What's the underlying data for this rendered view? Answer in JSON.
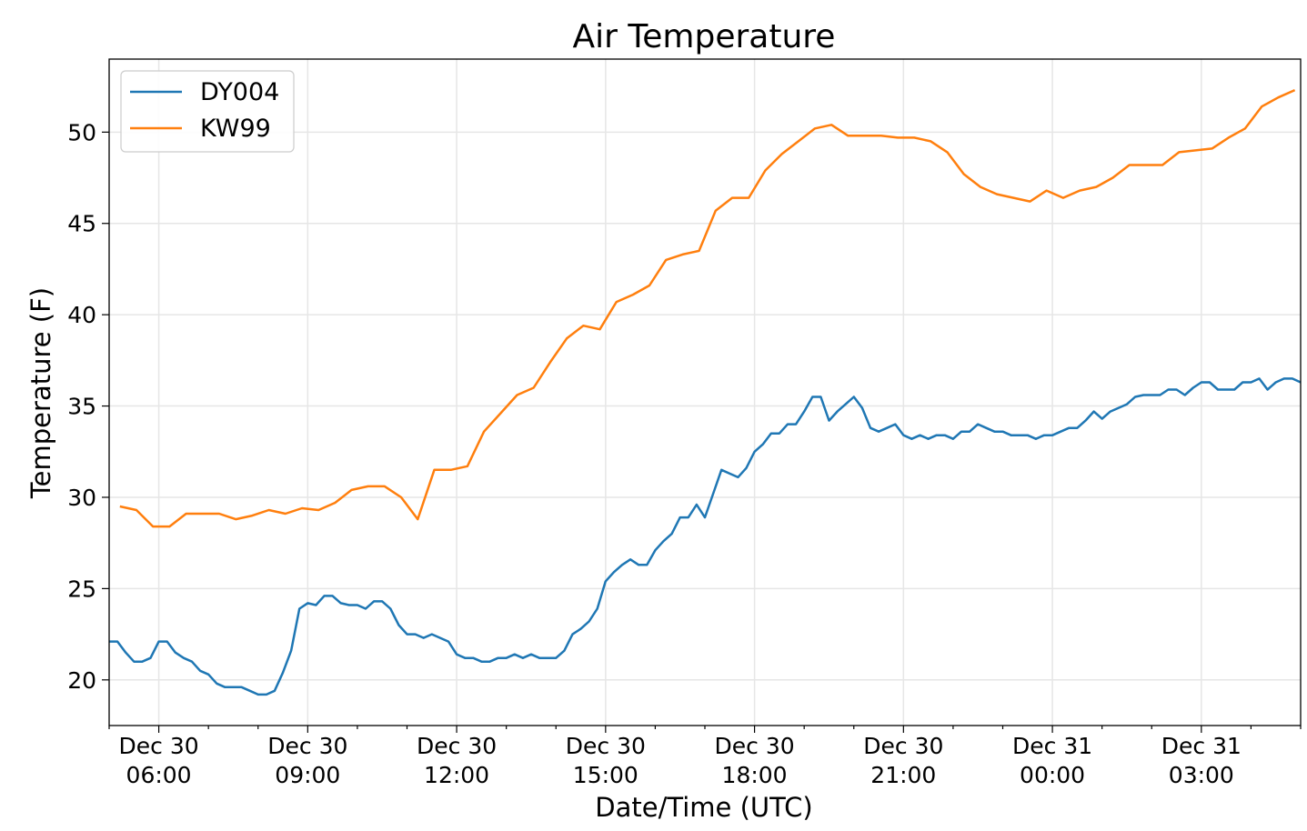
{
  "chart_data": {
    "type": "line",
    "title": "Air Temperature",
    "xlabel": "Date/Time (UTC)",
    "ylabel": "Temperature (F)",
    "x_units": "hours since Dec 30 00:00 UTC",
    "xlim": [
      5,
      29
    ],
    "ylim": [
      17.5,
      54
    ],
    "grid": true,
    "legend_position": "top-left",
    "x_ticks": [
      {
        "value": 6,
        "line1": "Dec 30",
        "line2": "06:00"
      },
      {
        "value": 9,
        "line1": "Dec 30",
        "line2": "09:00"
      },
      {
        "value": 12,
        "line1": "Dec 30",
        "line2": "12:00"
      },
      {
        "value": 15,
        "line1": "Dec 30",
        "line2": "15:00"
      },
      {
        "value": 18,
        "line1": "Dec 30",
        "line2": "18:00"
      },
      {
        "value": 21,
        "line1": "Dec 30",
        "line2": "21:00"
      },
      {
        "value": 24,
        "line1": "Dec 31",
        "line2": "00:00"
      },
      {
        "value": 27,
        "line1": "Dec 31",
        "line2": "03:00"
      }
    ],
    "y_ticks": [
      "20",
      "25",
      "30",
      "35",
      "40",
      "45",
      "50"
    ],
    "series": [
      {
        "name": "DY004",
        "color": "#1f77b4",
        "x_start": 5.0,
        "x_step": 0.16667,
        "values": [
          22.1,
          22.1,
          21.5,
          21.0,
          21.0,
          21.2,
          22.1,
          22.1,
          21.5,
          21.2,
          21.0,
          20.5,
          20.3,
          19.8,
          19.6,
          19.6,
          19.6,
          19.4,
          19.2,
          19.2,
          19.4,
          20.4,
          21.6,
          23.9,
          24.2,
          24.1,
          24.6,
          24.6,
          24.2,
          24.1,
          24.1,
          23.9,
          24.3,
          24.3,
          23.9,
          23.0,
          22.5,
          22.5,
          22.3,
          22.5,
          22.3,
          22.1,
          21.4,
          21.2,
          21.2,
          21.0,
          21.0,
          21.2,
          21.2,
          21.4,
          21.2,
          21.4,
          21.2,
          21.2,
          21.2,
          21.6,
          22.5,
          22.8,
          23.2,
          23.9,
          25.4,
          25.9,
          26.3,
          26.6,
          26.3,
          26.3,
          27.1,
          27.6,
          28.0,
          28.9,
          28.9,
          29.6,
          28.9,
          30.2,
          31.5,
          31.3,
          31.1,
          31.6,
          32.5,
          32.9,
          33.5,
          33.5,
          34.0,
          34.0,
          34.7,
          35.5,
          35.5,
          34.2,
          34.7,
          35.1,
          35.5,
          34.9,
          33.8,
          33.6,
          33.8,
          34.0,
          33.4,
          33.2,
          33.4,
          33.2,
          33.4,
          33.4,
          33.2,
          33.6,
          33.6,
          34.0,
          33.8,
          33.6,
          33.6,
          33.4,
          33.4,
          33.4,
          33.2,
          33.4,
          33.4,
          33.6,
          33.8,
          33.8,
          34.2,
          34.7,
          34.3,
          34.7,
          34.9,
          35.1,
          35.5,
          35.6,
          35.6,
          35.6,
          35.9,
          35.9,
          35.6,
          36.0,
          36.3,
          36.3,
          35.9,
          35.9,
          35.9,
          36.3,
          36.3,
          36.5,
          35.9,
          36.3,
          36.5,
          36.5,
          36.3
        ]
      },
      {
        "name": "KW99",
        "color": "#ff7f0e",
        "x_start": 5.2167,
        "x_step": 0.33333,
        "values": [
          29.5,
          29.3,
          28.4,
          28.4,
          29.1,
          29.1,
          29.1,
          28.8,
          29.0,
          29.3,
          29.1,
          29.4,
          29.3,
          29.7,
          30.4,
          30.6,
          30.6,
          30.0,
          28.8,
          31.5,
          31.5,
          31.7,
          33.6,
          34.6,
          35.6,
          36.0,
          37.4,
          38.7,
          39.4,
          39.2,
          40.7,
          41.1,
          41.6,
          43.0,
          43.3,
          43.5,
          45.7,
          46.4,
          46.4,
          47.9,
          48.8,
          49.5,
          50.2,
          50.4,
          49.8,
          49.8,
          49.8,
          49.7,
          49.7,
          49.5,
          48.9,
          47.7,
          47.0,
          46.6,
          46.4,
          46.2,
          46.8,
          46.4,
          46.8,
          47.0,
          47.5,
          48.2,
          48.2,
          48.2,
          48.9,
          49.0,
          49.1,
          49.7,
          50.2,
          51.4,
          51.9,
          52.3
        ]
      }
    ]
  }
}
